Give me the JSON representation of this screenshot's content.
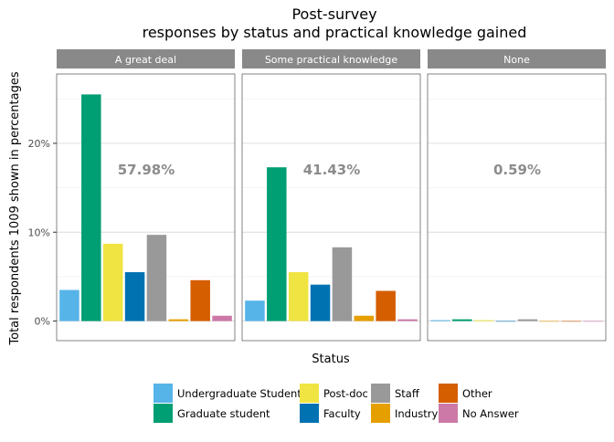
{
  "chart_data": {
    "type": "bar",
    "title": "Post-survey",
    "subtitle": "responses by status and practical knowledge gained",
    "xlabel": "Status",
    "ylabel": "Total respondents 1009 shown in percentages",
    "ylim": [
      -0.022,
      0.278
    ],
    "yticks": [
      {
        "value": 0,
        "label": "0%"
      },
      {
        "value": 0.1,
        "label": "10%"
      },
      {
        "value": 0.2,
        "label": "20%"
      }
    ],
    "legend_position": "bottom",
    "legend_columns": 4,
    "grid": true,
    "categories": [
      "Undergraduate Student",
      "Graduate student",
      "Post-doc",
      "Faculty",
      "Staff",
      "Industry",
      "Other",
      "No Answer"
    ],
    "colors": [
      "#56B4E9",
      "#009E73",
      "#F0E442",
      "#0072B2",
      "#999999",
      "#E69F00",
      "#D55E00",
      "#CC79A7"
    ],
    "panels": [
      {
        "name": "A great deal",
        "total_label": "57.98%",
        "values": [
          0.035,
          0.255,
          0.087,
          0.055,
          0.097,
          0.002,
          0.046,
          0.006
        ]
      },
      {
        "name": "Some practical knowledge",
        "total_label": "41.43%",
        "values": [
          0.023,
          0.173,
          0.055,
          0.041,
          0.083,
          0.006,
          0.034,
          0.002
        ]
      },
      {
        "name": "None",
        "total_label": "0.59%",
        "values": [
          0.001,
          0.002,
          0.001,
          0,
          0.002,
          0,
          0,
          0
        ]
      }
    ]
  }
}
